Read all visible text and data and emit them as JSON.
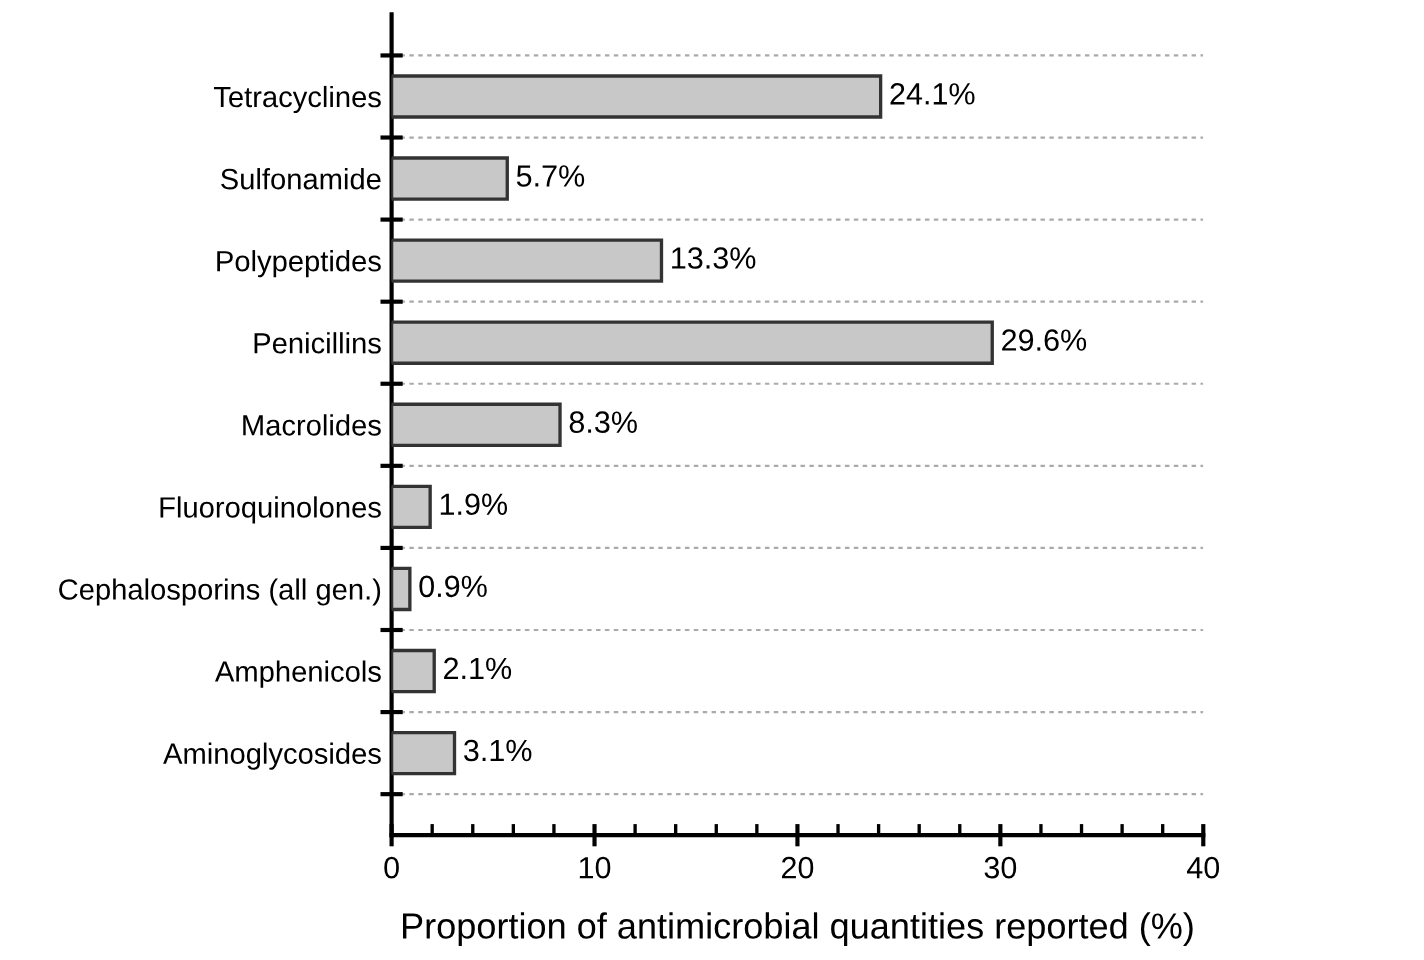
{
  "chart_data": {
    "type": "bar",
    "orientation": "horizontal",
    "xlabel": "Proportion of antimicrobial quantities reported (%)",
    "categories": [
      "Tetracyclines",
      "Sulfonamide",
      "Polypeptides",
      "Penicillins",
      "Macrolides",
      "Fluoroquinolones",
      "Cephalosporins (all gen.)",
      "Amphenicols",
      "Aminoglycosides"
    ],
    "values": [
      24.1,
      5.7,
      13.3,
      29.6,
      8.3,
      1.9,
      0.9,
      2.1,
      3.1
    ],
    "value_labels": [
      "24.1%",
      "5.7%",
      "13.3%",
      "29.6%",
      "8.3%",
      "1.9%",
      "0.9%",
      "2.1%",
      "3.1%"
    ],
    "color": "#c8c8c8",
    "xlim": [
      0,
      40
    ],
    "xticks": [
      0,
      10,
      20,
      30,
      40
    ],
    "grid": "y",
    "legend": false
  }
}
